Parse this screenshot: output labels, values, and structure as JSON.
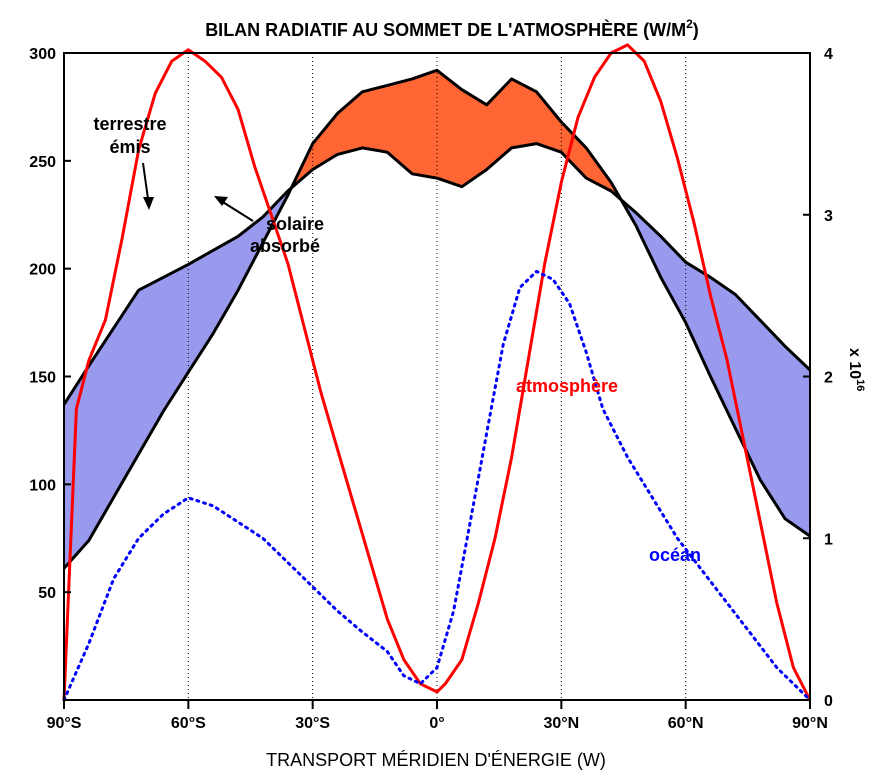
{
  "chart_data": {
    "type": "line",
    "title": "BILAN RADIATIF AU SOMMET DE L'ATMOSPHÈRE (W/M",
    "title_sup": "2",
    "title_close": ")",
    "xlabel": "TRANSPORT MÉRIDIEN D'ÉNERGIE (W)",
    "x_ticks": [
      "90°S",
      "60°S",
      "30°S",
      "0°",
      "30°N",
      "60°N",
      "90°N"
    ],
    "x_tick_values": [
      -90,
      -60,
      -30,
      0,
      30,
      60,
      90
    ],
    "xlim": [
      -90,
      90
    ],
    "y_left": {
      "ticks": [
        "300",
        "250",
        "200",
        "150",
        "100",
        "50"
      ],
      "tick_values": [
        300,
        250,
        200,
        150,
        100,
        50
      ],
      "ylim": [
        0,
        300
      ]
    },
    "y_right": {
      "ticks": [
        "0",
        "1",
        "2",
        "3",
        "4"
      ],
      "tick_values": [
        0,
        1,
        2,
        3,
        4
      ],
      "ylim": [
        0,
        4
      ],
      "multiplier": "x 10",
      "multiplier_exp": "16"
    },
    "vertical_grid_at": [
      -60,
      -30,
      0,
      30,
      60
    ],
    "series": [
      {
        "name": "terrestre émis",
        "axis": "left",
        "color": "#000000",
        "x": [
          -90,
          -84,
          -72,
          -60,
          -48,
          -42,
          -36,
          -30,
          -24,
          -18,
          -12,
          -6,
          0,
          6,
          12,
          18,
          24,
          30,
          36,
          42,
          48,
          54,
          60,
          66,
          72,
          78,
          84,
          90
        ],
        "y": [
          137,
          155,
          190,
          202,
          215,
          224,
          236,
          246,
          253,
          256,
          254,
          244,
          242,
          238,
          246,
          256,
          258,
          254,
          242,
          236,
          226,
          215,
          203,
          196,
          188,
          176,
          164,
          153
        ]
      },
      {
        "name": "solaire absorbé",
        "axis": "left",
        "color": "#000000",
        "x": [
          -90,
          -84,
          -78,
          -72,
          -66,
          -60,
          -54,
          -48,
          -42,
          -36,
          -30,
          -24,
          -18,
          -12,
          -6,
          0,
          6,
          12,
          18,
          24,
          30,
          36,
          42,
          48,
          54,
          60,
          66,
          72,
          78,
          84,
          90
        ],
        "y": [
          61,
          74,
          94,
          114,
          134,
          152,
          170,
          190,
          212,
          234,
          258,
          272,
          282,
          285,
          288,
          292,
          283,
          276,
          288,
          282,
          268,
          256,
          240,
          220,
          196,
          175,
          150,
          126,
          102,
          84,
          76
        ]
      },
      {
        "name": "atmosphère",
        "axis": "right",
        "color": "#ff0000",
        "x": [
          -90,
          -87,
          -84,
          -80,
          -76,
          -72,
          -68,
          -64,
          -60,
          -56,
          -52,
          -48,
          -44,
          -40,
          -36,
          -32,
          -28,
          -24,
          -20,
          -16,
          -12,
          -8,
          -4,
          0,
          2,
          6,
          10,
          14,
          18,
          22,
          26,
          30,
          34,
          38,
          42,
          46,
          50,
          54,
          58,
          62,
          66,
          70,
          74,
          78,
          82,
          86,
          90
        ],
        "y": [
          0,
          1.8,
          2.1,
          2.35,
          2.85,
          3.4,
          3.75,
          3.95,
          4.02,
          3.95,
          3.85,
          3.65,
          3.3,
          3.0,
          2.7,
          2.3,
          1.9,
          1.55,
          1.2,
          0.85,
          0.5,
          0.25,
          0.1,
          0.05,
          0.1,
          0.25,
          0.6,
          1.0,
          1.5,
          2.1,
          2.7,
          3.2,
          3.6,
          3.85,
          4.0,
          4.05,
          3.95,
          3.7,
          3.35,
          2.95,
          2.5,
          2.1,
          1.6,
          1.1,
          0.6,
          0.2,
          0
        ]
      },
      {
        "name": "océan",
        "axis": "right",
        "color": "#0000ff",
        "x": [
          -90,
          -84,
          -78,
          -72,
          -66,
          -60,
          -54,
          -48,
          -42,
          -36,
          -30,
          -24,
          -18,
          -12,
          -8,
          -4,
          0,
          4,
          8,
          12,
          16,
          20,
          24,
          28,
          32,
          36,
          40,
          46,
          52,
          58,
          64,
          70,
          76,
          82,
          88,
          90
        ],
        "y": [
          0,
          0.35,
          0.75,
          1.0,
          1.15,
          1.25,
          1.2,
          1.1,
          1.0,
          0.85,
          0.7,
          0.55,
          0.42,
          0.3,
          0.15,
          0.1,
          0.2,
          0.55,
          1.1,
          1.65,
          2.2,
          2.55,
          2.65,
          2.6,
          2.45,
          2.15,
          1.8,
          1.5,
          1.25,
          1.0,
          0.8,
          0.6,
          0.4,
          0.2,
          0.05,
          0
        ]
      }
    ],
    "fills": [
      {
        "between": [
          "terrestre émis",
          "solaire absorbé"
        ],
        "where": "emis > absorbé",
        "color": "#9999ee"
      },
      {
        "between": [
          "solaire absorbé",
          "terrestre émis"
        ],
        "where": "absorbé > emis",
        "color": "#ff6633"
      }
    ],
    "annotations": {
      "terrestre_line1": "terrestre",
      "terrestre_line2": "émis",
      "solaire_line1": "solaire",
      "solaire_line2": "absorbé",
      "atmosphere": "atmosphère",
      "ocean": "océan"
    }
  }
}
